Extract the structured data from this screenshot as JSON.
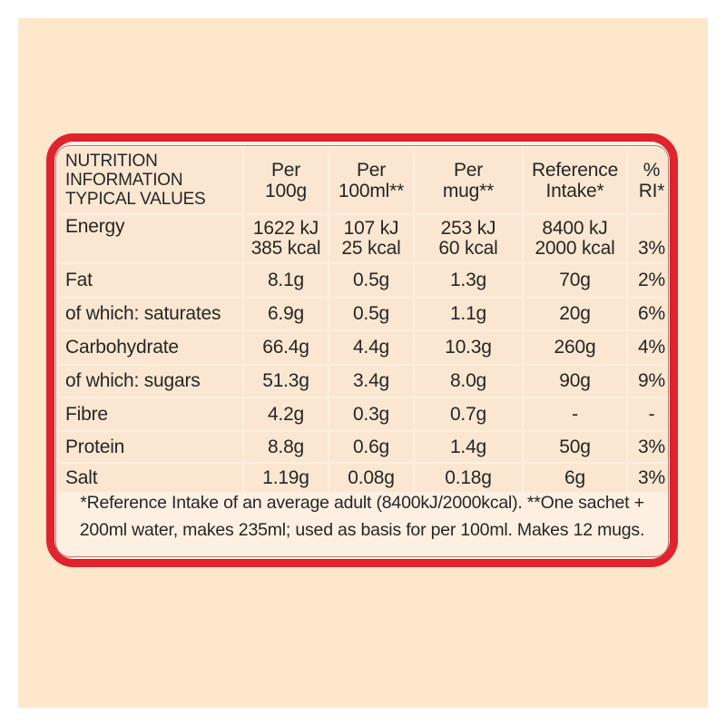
{
  "table": {
    "header": {
      "label_lines": [
        "NUTRITION",
        "INFORMATION",
        "TYPICAL VALUES"
      ],
      "columns": [
        [
          "Per",
          "100g"
        ],
        [
          "Per",
          "100ml**"
        ],
        [
          "Per",
          "mug**"
        ],
        [
          "Reference",
          "Intake*"
        ],
        [
          "%",
          "RI*"
        ]
      ]
    },
    "energy": {
      "label": "Energy",
      "per_100g": [
        "1622 kJ",
        "385 kcal"
      ],
      "per_100ml": [
        "107 kJ",
        "25 kcal"
      ],
      "per_mug": [
        "253 kJ",
        "60 kcal"
      ],
      "reference": [
        "8400 kJ",
        "2000 kcal"
      ],
      "ri": "3%"
    },
    "rows": [
      {
        "label": "Fat",
        "per_100g": "8.1g",
        "per_100ml": "0.5g",
        "per_mug": "1.3g",
        "reference": "70g",
        "ri": "2%"
      },
      {
        "label": "of which: saturates",
        "per_100g": "6.9g",
        "per_100ml": "0.5g",
        "per_mug": "1.1g",
        "reference": "20g",
        "ri": "6%"
      },
      {
        "label": "Carbohydrate",
        "per_100g": "66.4g",
        "per_100ml": "4.4g",
        "per_mug": "10.3g",
        "reference": "260g",
        "ri": "4%"
      },
      {
        "label": "of which: sugars",
        "per_100g": "51.3g",
        "per_100ml": "3.4g",
        "per_mug": "8.0g",
        "reference": "90g",
        "ri": "9%"
      },
      {
        "label": "Fibre",
        "per_100g": "4.2g",
        "per_100ml": "0.3g",
        "per_mug": "0.7g",
        "reference": "-",
        "ri": "-"
      },
      {
        "label": "Protein",
        "per_100g": "8.8g",
        "per_100ml": "0.6g",
        "per_mug": "1.4g",
        "reference": "50g",
        "ri": "3%"
      },
      {
        "label": "Salt",
        "per_100g": "1.19g",
        "per_100ml": "0.08g",
        "per_mug": "0.18g",
        "reference": "6g",
        "ri": "3%"
      }
    ]
  },
  "footnote": {
    "line1": "*Reference Intake of an average adult (8400kJ/2000kcal). **One sachet +",
    "line2": "200ml water, makes 235ml; used as basis for per 100ml. Makes 12 mugs."
  },
  "colors": {
    "border": "#e1232e",
    "background": "#fde8cc",
    "cell": "#fbe7d1"
  }
}
